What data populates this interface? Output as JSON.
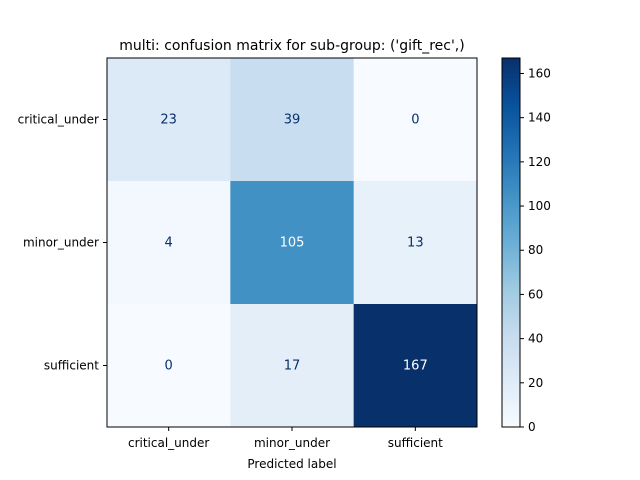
{
  "chart_data": {
    "type": "heatmap",
    "title": "multi: confusion matrix for sub-group: ('gift_rec',)",
    "xlabel": "Predicted label",
    "ylabel": "",
    "x_categories": [
      "critical_under",
      "minor_under",
      "sufficient"
    ],
    "y_categories": [
      "critical_under",
      "minor_under",
      "sufficient"
    ],
    "matrix": [
      [
        23,
        39,
        0
      ],
      [
        4,
        105,
        13
      ],
      [
        0,
        17,
        167
      ]
    ],
    "colormap": "Blues",
    "colorbar": {
      "range": [
        0,
        167
      ],
      "ticks": [
        0,
        20,
        40,
        60,
        80,
        100,
        120,
        140,
        160
      ]
    }
  }
}
